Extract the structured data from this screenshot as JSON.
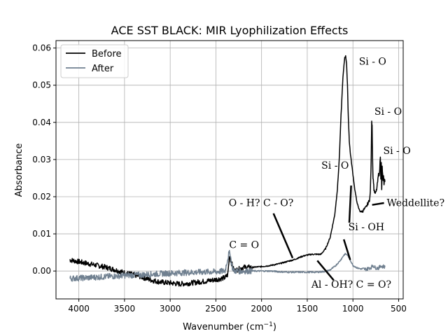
{
  "chart_data": {
    "type": "line",
    "title": "ACE SST BLACK: MIR Lyophilization Effects",
    "xlabel": "Wavenumber (cm",
    "xlabel_sup": "−1",
    "xlabel_close": ")",
    "ylabel": "Absorbance",
    "xlim": [
      4250,
      450
    ],
    "ylim": [
      -0.0075,
      0.062
    ],
    "x_ticks": [
      4000,
      3500,
      3000,
      2500,
      2000,
      1500,
      1000,
      500
    ],
    "x_tick_labels": [
      "4000",
      "3500",
      "3000",
      "2500",
      "2000",
      "1500",
      "1000",
      "500"
    ],
    "y_ticks": [
      0.0,
      0.01,
      0.02,
      0.03,
      0.04,
      0.05,
      0.06
    ],
    "y_tick_labels": [
      "0.00",
      "0.01",
      "0.02",
      "0.03",
      "0.04",
      "0.05",
      "0.06"
    ],
    "grid": true,
    "legend_placement": "top-left",
    "colors": {
      "before": "#000000",
      "after": "#708090",
      "grid": "#b0b0b0"
    },
    "series": [
      {
        "name": "Before",
        "color": "#000000",
        "noise": 0.0007,
        "x": [
          4100,
          4000,
          3900,
          3800,
          3700,
          3600,
          3500,
          3400,
          3300,
          3200,
          3100,
          3000,
          2900,
          2800,
          2700,
          2600,
          2500,
          2400,
          2370,
          2350,
          2340,
          2320,
          2300,
          2250,
          2200,
          2100,
          2000,
          1900,
          1800,
          1700,
          1650,
          1600,
          1550,
          1500,
          1450,
          1400,
          1350,
          1300,
          1250,
          1200,
          1170,
          1150,
          1130,
          1110,
          1090,
          1080,
          1070,
          1060,
          1050,
          1040,
          1030,
          1020,
          1000,
          980,
          960,
          940,
          920,
          900,
          880,
          860,
          840,
          820,
          810,
          800,
          795,
          790,
          785,
          780,
          775,
          770,
          760,
          750,
          740,
          730,
          720,
          710,
          700,
          695,
          690,
          685,
          680,
          675,
          670,
          665,
          660,
          655,
          650
        ],
        "y": [
          0.003,
          0.0025,
          0.002,
          0.0015,
          0.001,
          0.0003,
          -0.0005,
          -0.001,
          -0.0017,
          -0.0025,
          -0.003,
          -0.0032,
          -0.0035,
          -0.0033,
          -0.003,
          -0.0027,
          -0.0023,
          -0.0018,
          -0.001,
          0.0045,
          0.003,
          0.0015,
          0.0,
          0.0005,
          0.001,
          0.001,
          0.0012,
          0.0015,
          0.002,
          0.0027,
          0.003,
          0.0035,
          0.004,
          0.0043,
          0.0045,
          0.0045,
          0.0045,
          0.006,
          0.009,
          0.015,
          0.022,
          0.03,
          0.042,
          0.052,
          0.0575,
          0.0578,
          0.056,
          0.05,
          0.041,
          0.035,
          0.032,
          0.03,
          0.026,
          0.022,
          0.019,
          0.017,
          0.016,
          0.016,
          0.0165,
          0.017,
          0.018,
          0.019,
          0.021,
          0.03,
          0.04,
          0.0395,
          0.03,
          0.025,
          0.024,
          0.022,
          0.021,
          0.021,
          0.022,
          0.024,
          0.026,
          0.026,
          0.031,
          0.025,
          0.029,
          0.022,
          0.028,
          0.026,
          0.024,
          0.026,
          0.023,
          0.025,
          0.024
        ]
      },
      {
        "name": "After",
        "color": "#708090",
        "noise": 0.0008,
        "x": [
          4100,
          3900,
          3700,
          3500,
          3300,
          3100,
          2900,
          2700,
          2500,
          2400,
          2360,
          2345,
          2335,
          2320,
          2300,
          2200,
          2100,
          2000,
          1900,
          1800,
          1700,
          1600,
          1500,
          1400,
          1300,
          1250,
          1200,
          1150,
          1120,
          1100,
          1080,
          1060,
          1040,
          1020,
          1000,
          950,
          900,
          850,
          800,
          780,
          760,
          740,
          720,
          700,
          690,
          680,
          670,
          660,
          650
        ],
        "y": [
          -0.002,
          -0.0018,
          -0.0015,
          -0.0012,
          -0.001,
          -0.0007,
          -0.0005,
          -0.0003,
          -0.0002,
          0.0,
          0.0045,
          0.005,
          0.003,
          0.001,
          0.0,
          0.0,
          0.0,
          0.0,
          0.0,
          -0.0002,
          -0.0003,
          -0.0003,
          -0.0003,
          -0.0003,
          -0.0001,
          0.0003,
          0.0012,
          0.0025,
          0.0035,
          0.0043,
          0.0046,
          0.0043,
          0.0035,
          0.0025,
          0.0015,
          0.0008,
          0.0005,
          0.0005,
          0.001,
          0.0015,
          0.001,
          0.0008,
          0.0008,
          0.0012,
          0.0015,
          0.001,
          0.0013,
          0.0012,
          0.001
        ]
      }
    ],
    "annotations": [
      {
        "text": "Si - O",
        "x": 935,
        "y": 0.0555
      },
      {
        "text": "Si - O",
        "x": 765,
        "y": 0.042
      },
      {
        "text": "Si - O",
        "x": 668,
        "y": 0.0315
      },
      {
        "text": "Si - O",
        "x": 1345,
        "y": 0.0275
      },
      {
        "text": "O - H? C - O?",
        "x": 2360,
        "y": 0.0175
      },
      {
        "text": "Weddellite?",
        "x": 630,
        "y": 0.0175
      },
      {
        "text": "Si - OH",
        "x": 1050,
        "y": 0.011
      },
      {
        "text": "C = O",
        "x": 2355,
        "y": 0.0062
      },
      {
        "text": "Al - OH? C = O?",
        "x": 1455,
        "y": -0.0045
      }
    ],
    "annotation_lines": [
      {
        "from": [
          1870,
          0.0155
        ],
        "to": [
          1660,
          0.0035
        ]
      },
      {
        "from": [
          1020,
          0.023
        ],
        "to": [
          1040,
          0.013
        ]
      },
      {
        "from": [
          1100,
          0.0085
        ],
        "to": [
          1030,
          0.003
        ]
      },
      {
        "from": [
          1390,
          0.0028
        ],
        "to": [
          1210,
          -0.0025
        ]
      },
      {
        "from": [
          660,
          0.0183
        ],
        "to": [
          790,
          0.0178
        ]
      }
    ]
  }
}
